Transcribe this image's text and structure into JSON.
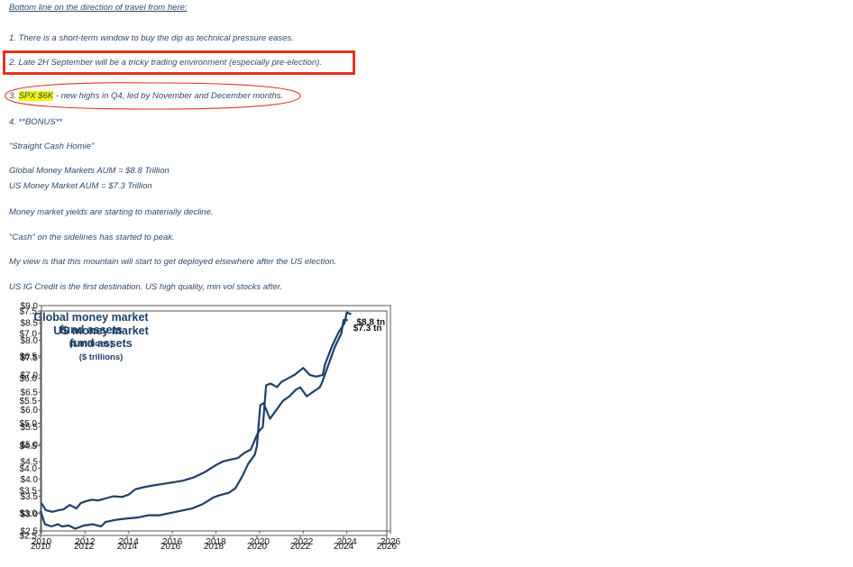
{
  "notes": {
    "heading": "Bottom line on the direction of travel from here:",
    "item1": "1. There is a short-term window to buy the dip as technical pressure eases.",
    "item2": "2. Late 2H September will be a tricky trading environment (especially pre-election).",
    "item3_prefix": "3. ",
    "item3_highlight": "SPX $6K",
    "item3_rest": " - new highs in Q4, led by November and December months.",
    "item4": "4. **BONUS**",
    "quote": "\"Straight Cash Homie\"",
    "global_aum": "Global Money Markets AUM = $8.8 Trillion",
    "us_aum": "US Money Market AUM = $7.3 Trillion",
    "yields": "Money market yields are starting to materially decline.",
    "cash": "\"Cash\" on the sidelines has started to peak.",
    "view": "My view is that this mountain will start to get deployed elsewhere after the US election.",
    "credit": "US IG Credit is the first destination. US high quality, min vol stocks after."
  },
  "colors": {
    "line": "#1f3f66",
    "title": "#1f3f66",
    "highlight": "#f5f500",
    "annotation": "#e8321e"
  },
  "chart_data": [
    {
      "type": "line",
      "title": "Global money market fund assets",
      "subtitle": "($ trillions)",
      "end_label": "$8.8 tn",
      "xlim": [
        2010,
        2026
      ],
      "ylim": [
        2.5,
        9.0
      ],
      "x_ticks": [
        2010,
        2012,
        2014,
        2016,
        2018,
        2020,
        2022,
        2024,
        2026
      ],
      "y_ticks": [
        2.5,
        3.0,
        3.5,
        4.0,
        4.5,
        5.0,
        5.5,
        6.0,
        6.5,
        7.0,
        7.5,
        8.0,
        8.5,
        9.0
      ],
      "y_tick_labels": [
        "$2.5",
        "$3.0",
        "$3.5",
        "$4.0",
        "$4.5",
        "$5.0",
        "$5.5",
        "$6.0",
        "$6.5",
        "$7.0",
        "$7.5",
        "$8.0",
        "$8.5",
        "$9.0"
      ],
      "x": [
        2010.0,
        2010.2,
        2010.5,
        2010.8,
        2011.0,
        2011.3,
        2011.6,
        2011.8,
        2012.0,
        2012.3,
        2012.6,
        2013.0,
        2013.3,
        2013.7,
        2014.0,
        2014.3,
        2014.6,
        2015.0,
        2015.5,
        2016.0,
        2016.5,
        2017.0,
        2017.5,
        2018.0,
        2018.3,
        2018.6,
        2019.0,
        2019.3,
        2019.6,
        2019.9,
        2020.0,
        2020.15,
        2020.3,
        2020.5,
        2020.8,
        2021.0,
        2021.3,
        2021.6,
        2021.9,
        2022.0,
        2022.3,
        2022.6,
        2022.9,
        2023.0,
        2023.3,
        2023.6,
        2023.9,
        2024.0,
        2024.2
      ],
      "y": [
        3.3,
        3.1,
        3.05,
        3.1,
        3.12,
        3.25,
        3.15,
        3.3,
        3.35,
        3.4,
        3.38,
        3.45,
        3.5,
        3.48,
        3.55,
        3.7,
        3.75,
        3.8,
        3.85,
        3.9,
        3.95,
        4.05,
        4.2,
        4.4,
        4.5,
        4.55,
        4.6,
        4.75,
        4.85,
        5.3,
        5.4,
        5.5,
        6.7,
        6.75,
        6.65,
        6.8,
        6.9,
        7.0,
        7.15,
        7.2,
        7.0,
        6.95,
        7.0,
        7.3,
        7.8,
        8.2,
        8.5,
        8.8,
        8.75
      ]
    },
    {
      "type": "line",
      "title": "US money market fund assets",
      "subtitle": "($ trillions)",
      "end_label": "$7.3 tn",
      "xlim": [
        2010,
        2026
      ],
      "ylim": [
        2.5,
        7.5
      ],
      "x_ticks": [
        2010,
        2012,
        2014,
        2016,
        2018,
        2020,
        2022,
        2024,
        2026
      ],
      "y_ticks": [
        2.5,
        3.0,
        3.5,
        4.0,
        4.5,
        5.0,
        5.5,
        6.0,
        6.5,
        7.0,
        7.5
      ],
      "y_tick_labels": [
        "$2.5",
        "$3.0",
        "$3.5",
        "$4.0",
        "$4.5",
        "$5.0",
        "$5.5",
        "$6.0",
        "$6.5",
        "$7.0",
        "$7.5"
      ],
      "x": [
        2010.0,
        2010.2,
        2010.5,
        2010.8,
        2011.0,
        2011.3,
        2011.6,
        2012.0,
        2012.4,
        2012.8,
        2013.0,
        2013.5,
        2014.0,
        2014.5,
        2015.0,
        2015.5,
        2016.0,
        2016.5,
        2017.0,
        2017.5,
        2018.0,
        2018.3,
        2018.7,
        2019.0,
        2019.3,
        2019.6,
        2019.9,
        2020.0,
        2020.15,
        2020.3,
        2020.6,
        2020.9,
        2021.2,
        2021.5,
        2021.8,
        2022.0,
        2022.3,
        2022.6,
        2022.9,
        2023.0,
        2023.3,
        2023.6,
        2023.9,
        2024.0,
        2024.2
      ],
      "y": [
        3.05,
        2.75,
        2.7,
        2.75,
        2.7,
        2.72,
        2.65,
        2.72,
        2.75,
        2.7,
        2.8,
        2.85,
        2.88,
        2.9,
        2.95,
        2.95,
        3.0,
        3.05,
        3.1,
        3.2,
        3.35,
        3.4,
        3.45,
        3.55,
        3.8,
        4.1,
        4.3,
        4.5,
        5.4,
        5.45,
        5.1,
        5.3,
        5.5,
        5.6,
        5.75,
        5.8,
        5.6,
        5.7,
        5.8,
        5.9,
        6.3,
        6.7,
        7.0,
        7.3,
        7.3
      ]
    }
  ]
}
